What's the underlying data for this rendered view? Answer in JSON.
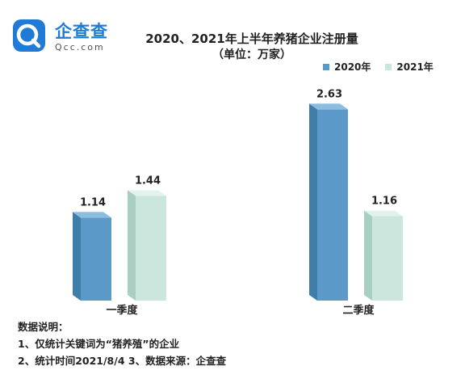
{
  "brand": {
    "name": "企查查",
    "sub": "Qcc.com",
    "color": "#1f7bd6"
  },
  "chart_data": {
    "type": "bar",
    "title": "2020、2021年上半年养猪企业注册量",
    "subtitle": "（单位：万家）",
    "categories": [
      "一季度",
      "二季度"
    ],
    "series": [
      {
        "name": "2020年",
        "values": [
          1.14,
          2.63
        ],
        "labels": [
          "1.14",
          "2.63"
        ],
        "color": "#5b9ac8",
        "side": "#3f7ea9",
        "top": "#8cbde0"
      },
      {
        "name": "2021年",
        "values": [
          1.44,
          1.16
        ],
        "labels": [
          "1.44",
          "1.16"
        ],
        "color": "#cbe7dd",
        "side": "#a8cfc1",
        "top": "#e2f2ec"
      }
    ],
    "legend_position": "top-right",
    "grid": false
  },
  "notes": {
    "heading": "数据说明：",
    "line1": "1、仅统计关键词为“猪养殖”的企业",
    "line2": "2、统计时间2021/8/4   3、数据来源：企查查"
  }
}
